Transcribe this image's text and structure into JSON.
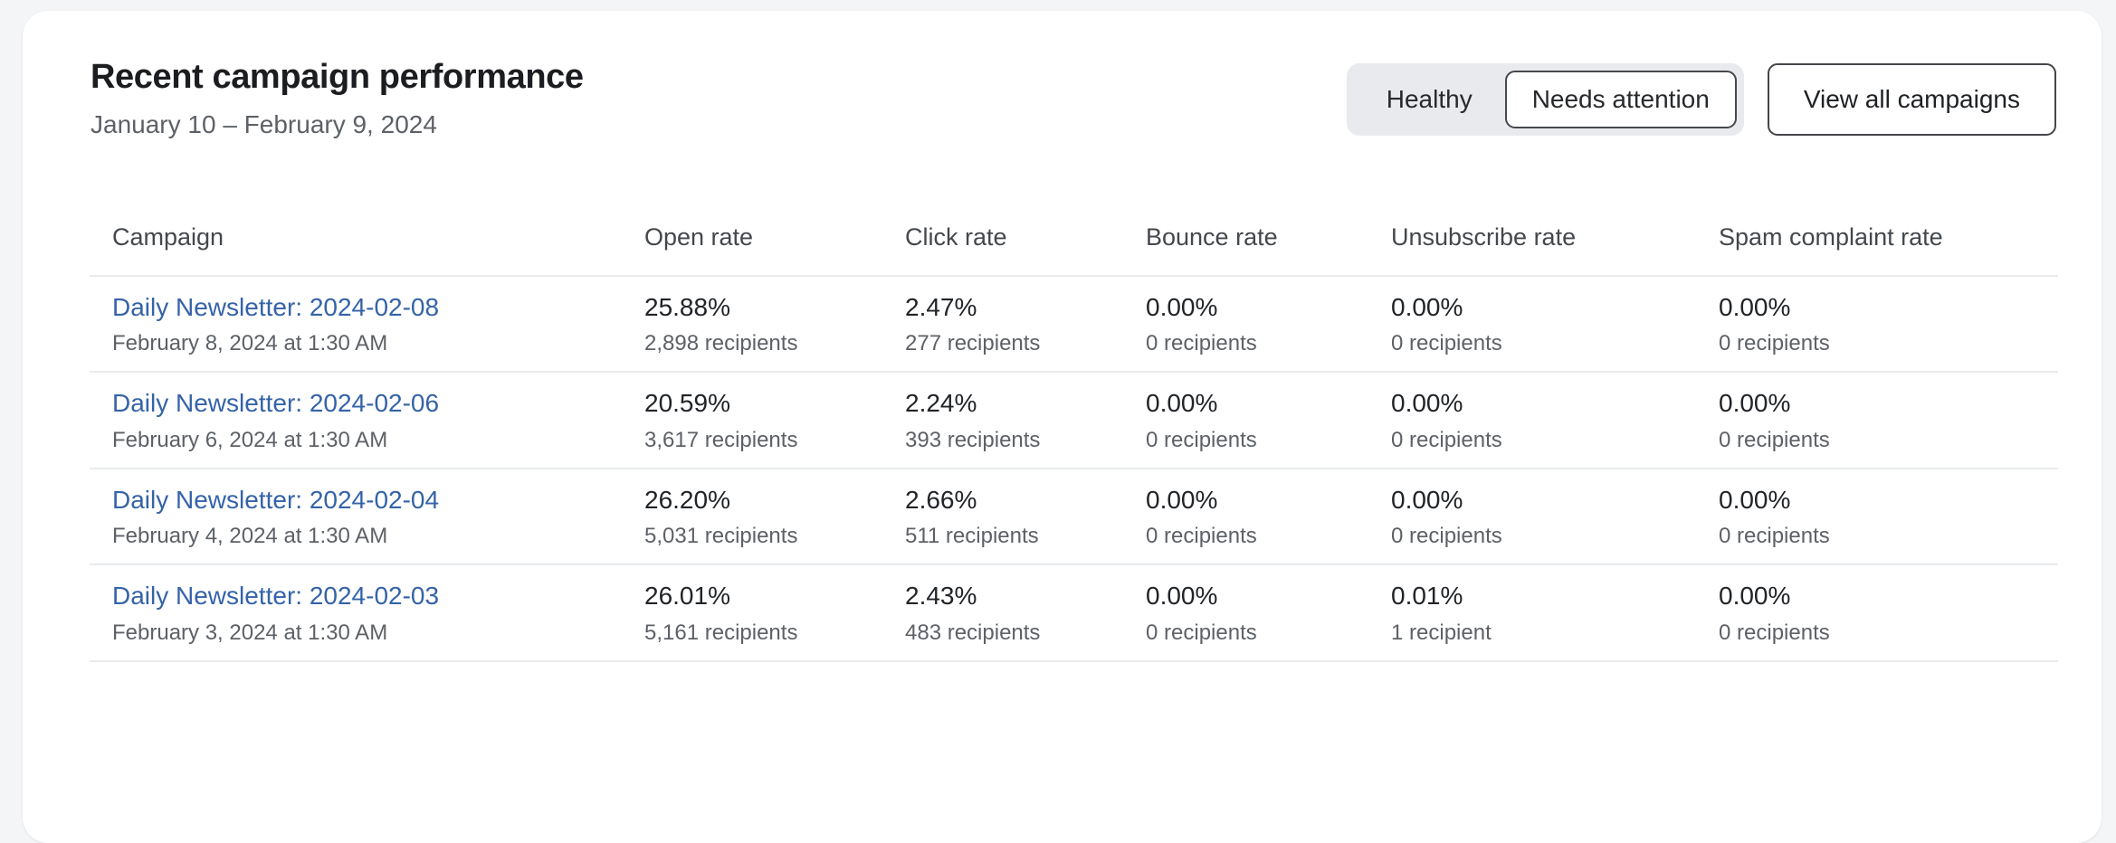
{
  "header": {
    "title": "Recent campaign performance",
    "date_range": "January 10 – February 9, 2024",
    "filters": [
      {
        "label": "Healthy",
        "selected": false
      },
      {
        "label": "Needs attention",
        "selected": true
      }
    ],
    "view_all_label": "View all campaigns"
  },
  "table": {
    "columns": [
      "Campaign",
      "Open rate",
      "Click rate",
      "Bounce rate",
      "Unsubscribe rate",
      "Spam complaint rate"
    ],
    "rows": [
      {
        "campaign": "Daily Newsletter: 2024-02-08",
        "sent_at": "February 8, 2024 at 1:30 AM",
        "stats": [
          {
            "rate": "25.88%",
            "recipients": "2,898 recipients"
          },
          {
            "rate": "2.47%",
            "recipients": "277 recipients"
          },
          {
            "rate": "0.00%",
            "recipients": "0 recipients"
          },
          {
            "rate": "0.00%",
            "recipients": "0 recipients"
          },
          {
            "rate": "0.00%",
            "recipients": "0 recipients"
          }
        ]
      },
      {
        "campaign": "Daily Newsletter: 2024-02-06",
        "sent_at": "February 6, 2024 at 1:30 AM",
        "stats": [
          {
            "rate": "20.59%",
            "recipients": "3,617 recipients"
          },
          {
            "rate": "2.24%",
            "recipients": "393 recipients"
          },
          {
            "rate": "0.00%",
            "recipients": "0 recipients"
          },
          {
            "rate": "0.00%",
            "recipients": "0 recipients"
          },
          {
            "rate": "0.00%",
            "recipients": "0 recipients"
          }
        ]
      },
      {
        "campaign": "Daily Newsletter: 2024-02-04",
        "sent_at": "February 4, 2024 at 1:30 AM",
        "stats": [
          {
            "rate": "26.20%",
            "recipients": "5,031 recipients"
          },
          {
            "rate": "2.66%",
            "recipients": "511 recipients"
          },
          {
            "rate": "0.00%",
            "recipients": "0 recipients"
          },
          {
            "rate": "0.00%",
            "recipients": "0 recipients"
          },
          {
            "rate": "0.00%",
            "recipients": "0 recipients"
          }
        ]
      },
      {
        "campaign": "Daily Newsletter: 2024-02-03",
        "sent_at": "February 3, 2024 at 1:30 AM",
        "stats": [
          {
            "rate": "26.01%",
            "recipients": "5,161 recipients"
          },
          {
            "rate": "2.43%",
            "recipients": "483 recipients"
          },
          {
            "rate": "0.00%",
            "recipients": "0 recipients"
          },
          {
            "rate": "0.01%",
            "recipients": "1 recipient"
          },
          {
            "rate": "0.00%",
            "recipients": "0 recipients"
          }
        ]
      }
    ]
  },
  "colors": {
    "page_bg": "#f4f5f7",
    "card_bg": "#ffffff",
    "link": "#3563a8",
    "text_dark": "#212428",
    "text_gray": "#5d6167",
    "divider": "#e9ebee",
    "segmented_bg": "#e9eaed",
    "button_border": "#43464a"
  }
}
